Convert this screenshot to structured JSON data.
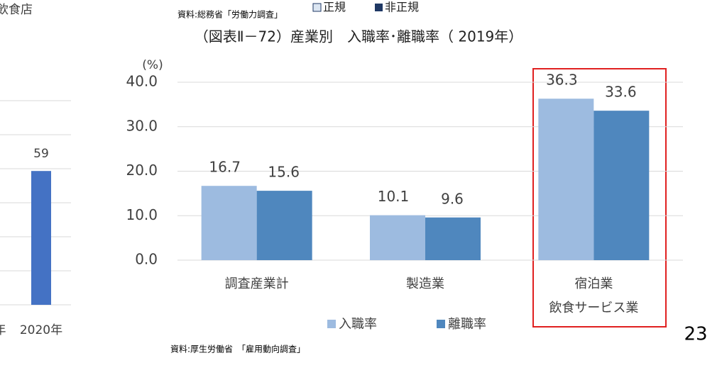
{
  "chart_data": [
    {
      "type": "bar",
      "title": "（図表Ⅱ－72）産業別　入職率･離職率（ 2019年）",
      "y_label": "(%)",
      "categories": [
        "調査産業計",
        "製造業",
        "宿泊業\n飲食サービス業"
      ],
      "series": [
        {
          "name": "入職率",
          "color": "#9dbbe0",
          "values": [
            16.7,
            10.1,
            36.3
          ]
        },
        {
          "name": "離職率",
          "color": "#4f87be",
          "values": [
            15.6,
            9.6,
            33.6
          ]
        }
      ],
      "ylim": [
        0,
        40
      ],
      "yticks": [
        {
          "value": 0,
          "label": "0.0"
        },
        {
          "value": 10,
          "label": "10.0"
        },
        {
          "value": 20,
          "label": "20.0"
        },
        {
          "value": 30,
          "label": "30.0"
        },
        {
          "value": 40,
          "label": "40.0"
        }
      ],
      "grid": true,
      "legend": "bottom",
      "source": "資料:厚生労働省　「雇用動向調査」"
    },
    {
      "type": "bar",
      "title": "飲食店",
      "categories": [
        "年",
        "2020年"
      ],
      "values": [
        null,
        59
      ],
      "color": "#4472c4",
      "ylim": [
        0,
        90
      ],
      "yticks": [
        0,
        15,
        30,
        45,
        60,
        75,
        90
      ],
      "grid": true
    }
  ],
  "other_chart": {
    "source": "資料:総務省「労働力調査」",
    "legend": [
      "正規",
      "非正規"
    ]
  },
  "page_number": "23"
}
